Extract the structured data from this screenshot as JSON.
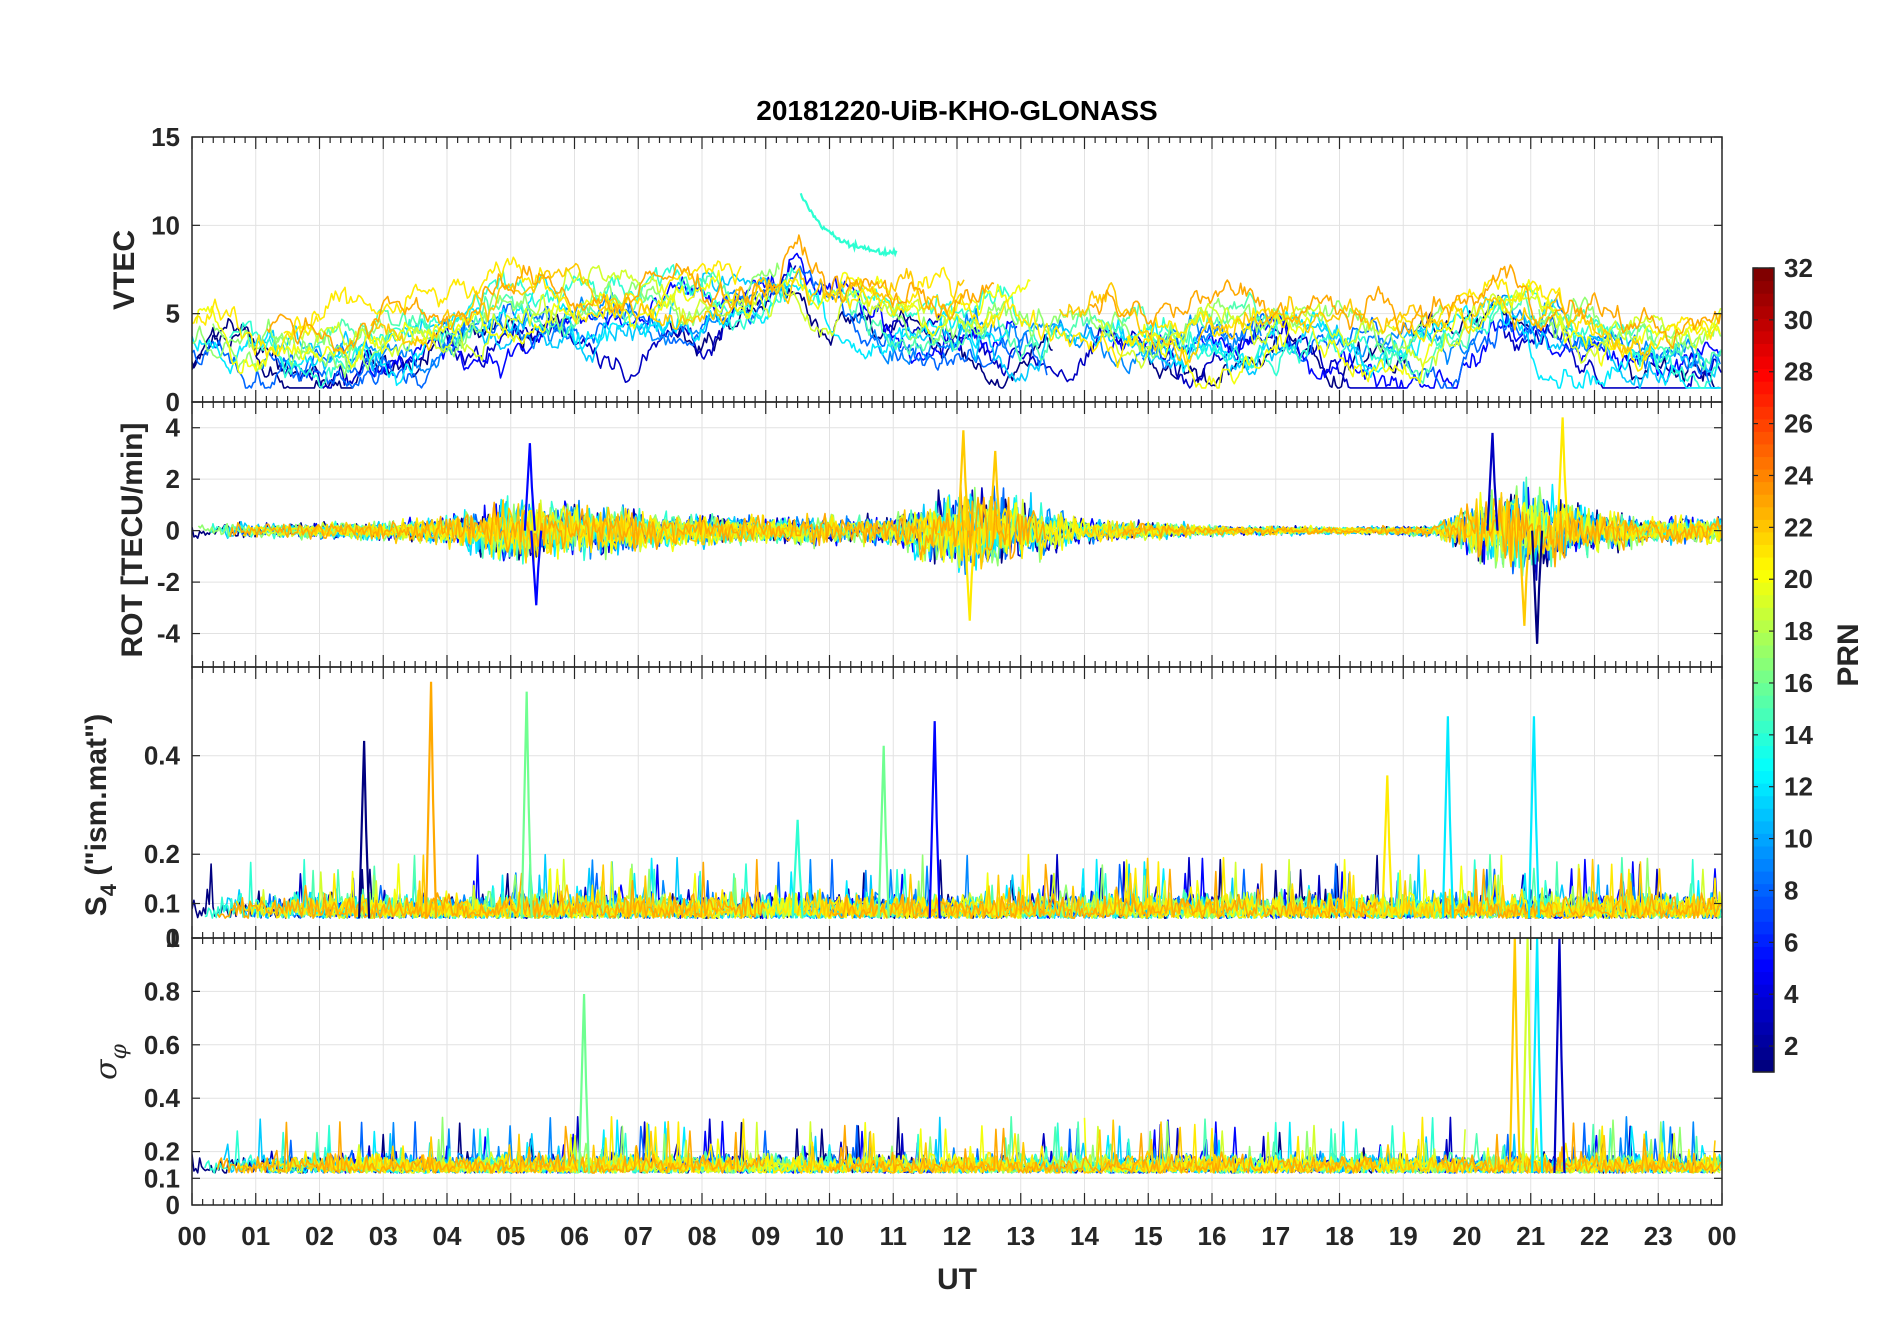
{
  "chart_data": {
    "type": "line",
    "title": "20181220-UiB-KHO-GLONASS",
    "xlabel": "UT",
    "x_range_hours": [
      0,
      24
    ],
    "x_tick_labels": [
      "00",
      "01",
      "02",
      "03",
      "04",
      "05",
      "06",
      "07",
      "08",
      "09",
      "10",
      "11",
      "12",
      "13",
      "14",
      "15",
      "16",
      "17",
      "18",
      "19",
      "20",
      "21",
      "22",
      "23",
      "00"
    ],
    "grid": true,
    "colorbar": {
      "label": "PRN",
      "range": [
        1,
        32
      ],
      "tick_values": [
        2,
        4,
        6,
        8,
        10,
        12,
        14,
        16,
        18,
        20,
        22,
        24,
        26,
        28,
        30,
        32
      ],
      "tick_labels": [
        "2",
        "4",
        "6",
        "8",
        "10",
        "12",
        "14",
        "16",
        "18",
        "20",
        "22",
        "24",
        "26",
        "28",
        "30",
        "32"
      ],
      "colormap": "jet",
      "placement": "right"
    },
    "series_prns": [
      1,
      3,
      5,
      8,
      9,
      11,
      12,
      14,
      15,
      17,
      19,
      20,
      21,
      22,
      23
    ],
    "panels": [
      {
        "ylabel": "VTEC",
        "ylim": [
          0,
          15
        ],
        "y_tick_values": [
          0,
          5,
          10,
          15
        ],
        "y_tick_labels": [
          "0",
          "5",
          "10",
          "15"
        ],
        "activity": [
          {
            "x": 0,
            "y": 3.5
          },
          {
            "x": 0.3,
            "y": 4.5
          },
          {
            "x": 1,
            "y": 3.2
          },
          {
            "x": 2,
            "y": 2.8
          },
          {
            "x": 3,
            "y": 3.5
          },
          {
            "x": 4,
            "y": 4
          },
          {
            "x": 5,
            "y": 4.8
          },
          {
            "x": 6,
            "y": 5.2
          },
          {
            "x": 7,
            "y": 5
          },
          {
            "x": 8,
            "y": 5.5
          },
          {
            "x": 9,
            "y": 6
          },
          {
            "x": 9.5,
            "y": 7.5
          },
          {
            "x": 10,
            "y": 5.5
          },
          {
            "x": 11,
            "y": 4.5
          },
          {
            "x": 12,
            "y": 5
          },
          {
            "x": 13,
            "y": 4.5
          },
          {
            "x": 14,
            "y": 4
          },
          {
            "x": 15,
            "y": 3.5
          },
          {
            "x": 16,
            "y": 3.8
          },
          {
            "x": 17,
            "y": 4
          },
          {
            "x": 18,
            "y": 3.5
          },
          {
            "x": 19,
            "y": 3.2
          },
          {
            "x": 20,
            "y": 4
          },
          {
            "x": 20.5,
            "y": 5.5
          },
          {
            "x": 21,
            "y": 5
          },
          {
            "x": 22,
            "y": 3.8
          },
          {
            "x": 23,
            "y": 3
          },
          {
            "x": 24,
            "y": 2.8
          }
        ],
        "peaks": [
          {
            "x": 9.55,
            "y": 11.8,
            "prn": 14
          }
        ]
      },
      {
        "ylabel": "ROT [TECU/min]",
        "ylim": [
          -5.3,
          5
        ],
        "y_tick_values": [
          -4,
          -2,
          0,
          2,
          4
        ],
        "y_tick_labels": [
          "-4",
          "-2",
          "0",
          "2",
          "4"
        ],
        "activity": [
          {
            "x": 0,
            "y": 0.5
          },
          {
            "x": 1,
            "y": 0.4
          },
          {
            "x": 3,
            "y": 0.5
          },
          {
            "x": 4,
            "y": 0.8
          },
          {
            "x": 5,
            "y": 1.8
          },
          {
            "x": 6,
            "y": 1.4
          },
          {
            "x": 7,
            "y": 1.1
          },
          {
            "x": 9,
            "y": 0.7
          },
          {
            "x": 10,
            "y": 0.8
          },
          {
            "x": 11,
            "y": 0.8
          },
          {
            "x": 12,
            "y": 2.5
          },
          {
            "x": 13,
            "y": 1.8
          },
          {
            "x": 14,
            "y": 0.6
          },
          {
            "x": 15,
            "y": 0.5
          },
          {
            "x": 16,
            "y": 0.3
          },
          {
            "x": 18,
            "y": 0.2
          },
          {
            "x": 19.5,
            "y": 0.3
          },
          {
            "x": 20.3,
            "y": 2
          },
          {
            "x": 21,
            "y": 2.6
          },
          {
            "x": 22,
            "y": 1.2
          },
          {
            "x": 23,
            "y": 0.7
          },
          {
            "x": 24,
            "y": 0.7
          }
        ],
        "peaks": [
          {
            "x": 5.3,
            "y": 3.4,
            "prn": 5
          },
          {
            "x": 5.4,
            "y": -2.9,
            "prn": 5
          },
          {
            "x": 12.1,
            "y": 3.9,
            "prn": 22
          },
          {
            "x": 12.2,
            "y": -3.5,
            "prn": 21
          },
          {
            "x": 12.6,
            "y": 3.1,
            "prn": 22
          },
          {
            "x": 20.4,
            "y": 3.8,
            "prn": 3
          },
          {
            "x": 20.9,
            "y": -3.7,
            "prn": 22
          },
          {
            "x": 21.1,
            "y": -4.4,
            "prn": 1
          },
          {
            "x": 21.5,
            "y": 4.4,
            "prn": 21
          }
        ]
      },
      {
        "ylabel": "S4 (\"ism.mat\")",
        "ylabel_main": "S",
        "ylabel_sub": "4",
        "ylabel_rest": " (\"ism.mat\")",
        "ylim": [
          0.03,
          0.58
        ],
        "y_tick_values": [
          0.03,
          0.1,
          0.2,
          0.4
        ],
        "y_tick_labels": [
          "0",
          "0.1",
          "0.2",
          "0.4"
        ],
        "baseline": 0.07,
        "peaks": [
          {
            "x": 2.7,
            "y": 0.43,
            "prn": 1
          },
          {
            "x": 3.75,
            "y": 0.55,
            "prn": 23
          },
          {
            "x": 5.25,
            "y": 0.53,
            "prn": 16
          },
          {
            "x": 9.5,
            "y": 0.27,
            "prn": 14
          },
          {
            "x": 10.85,
            "y": 0.42,
            "prn": 16
          },
          {
            "x": 11.65,
            "y": 0.47,
            "prn": 5
          },
          {
            "x": 18.75,
            "y": 0.36,
            "prn": 21
          },
          {
            "x": 19.7,
            "y": 0.48,
            "prn": 12
          },
          {
            "x": 21.05,
            "y": 0.48,
            "prn": 12
          }
        ]
      },
      {
        "ylabel": "σφ",
        "ylabel_main": "σ",
        "ylabel_sub": "φ",
        "ylim": [
          0,
          1
        ],
        "y_tick_values": [
          0,
          0.1,
          0.2,
          0.4,
          0.6,
          0.8,
          1
        ],
        "y_tick_labels": [
          "0",
          "0.1",
          "0.2",
          "0.4",
          "0.6",
          "0.8",
          "1"
        ],
        "baseline": 0.12,
        "peaks": [
          {
            "x": 6.15,
            "y": 0.79,
            "prn": 16
          },
          {
            "x": 20.75,
            "y": 1,
            "prn": 22
          },
          {
            "x": 20.95,
            "y": 1,
            "prn": 19
          },
          {
            "x": 21.1,
            "y": 1,
            "prn": 12
          },
          {
            "x": 21.45,
            "y": 1,
            "prn": 3
          }
        ]
      }
    ]
  }
}
